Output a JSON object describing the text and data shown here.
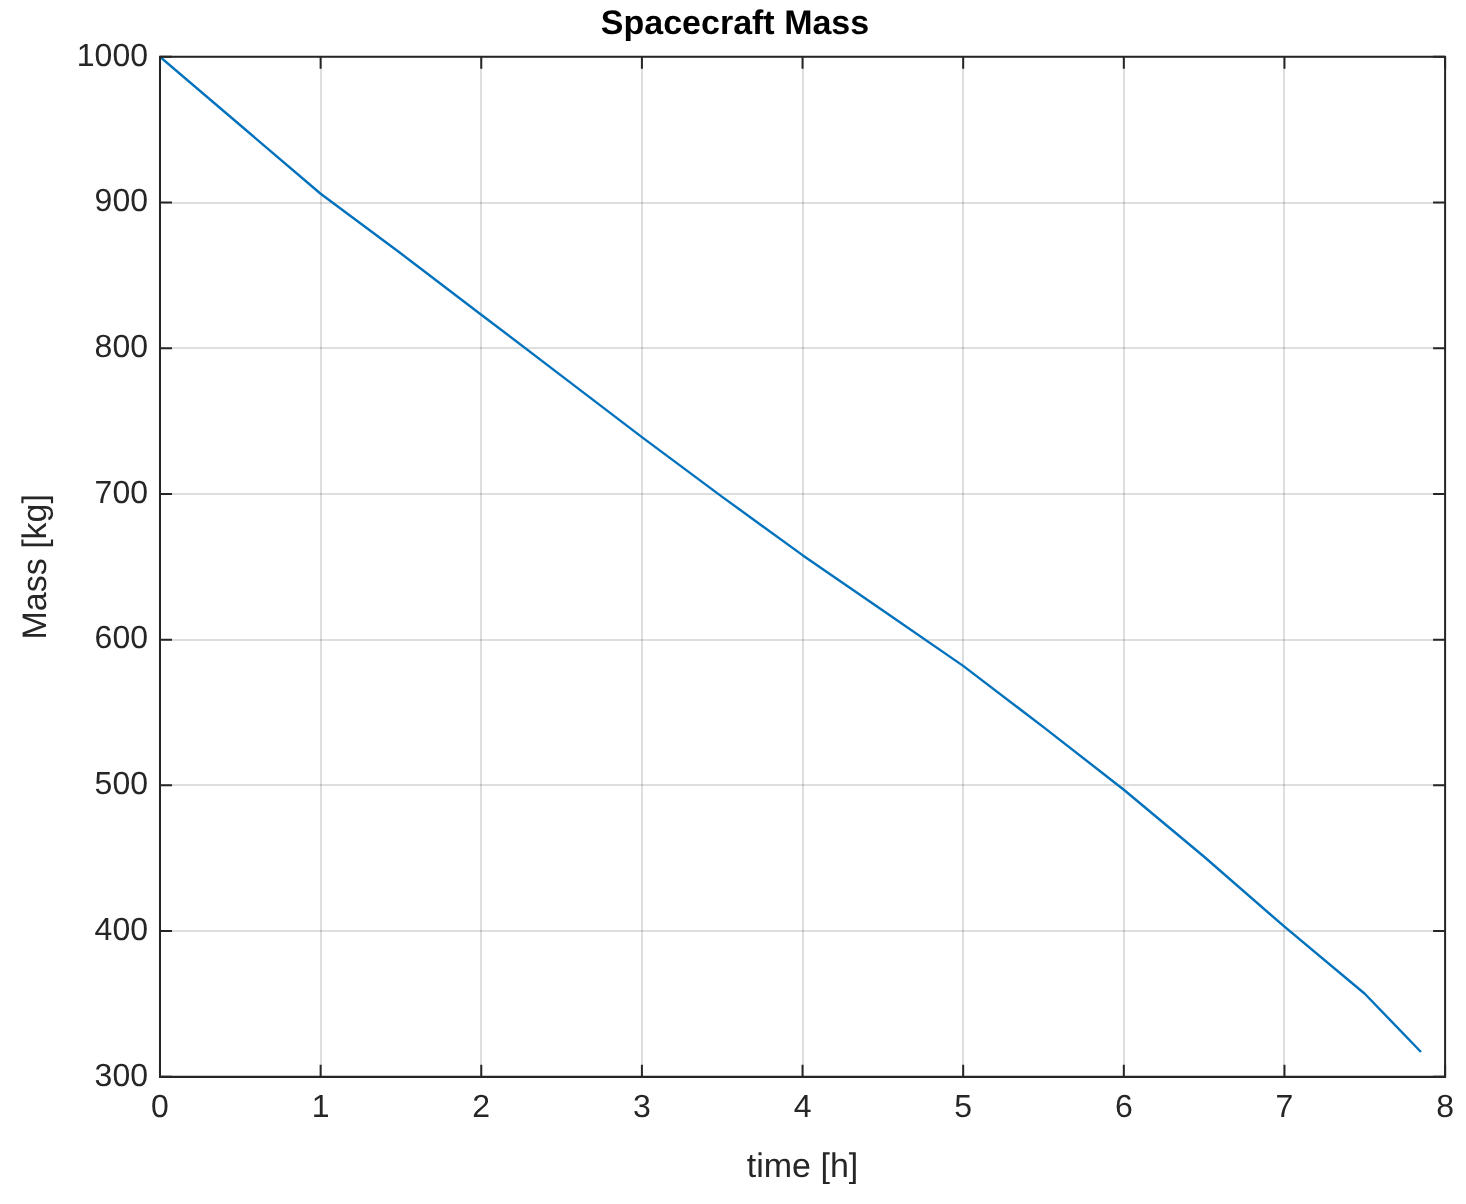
{
  "chart_data": {
    "type": "line",
    "title": "Spacecraft Mass",
    "xlabel": "time [h]",
    "ylabel": "Mass [kg]",
    "x": [
      0,
      0.5,
      1,
      1.5,
      2,
      2.5,
      3,
      3.5,
      4,
      4.5,
      5,
      5.5,
      6,
      6.5,
      7,
      7.5,
      7.85
    ],
    "series": [
      {
        "color": "#0072bd",
        "values": [
          1000,
          953,
          906,
          865,
          823,
          781,
          739,
          698,
          658,
          620,
          582,
          540,
          497,
          451,
          403,
          357,
          317
        ]
      }
    ],
    "xlim": [
      0,
      8
    ],
    "xticks": [
      0,
      1,
      2,
      3,
      4,
      5,
      6,
      7,
      8
    ],
    "ylim": [
      300,
      1000
    ],
    "yticks": [
      300,
      400,
      500,
      600,
      700,
      800,
      900,
      1000
    ],
    "grid": true,
    "legend": false,
    "marker": "none",
    "line_style": "solid"
  }
}
